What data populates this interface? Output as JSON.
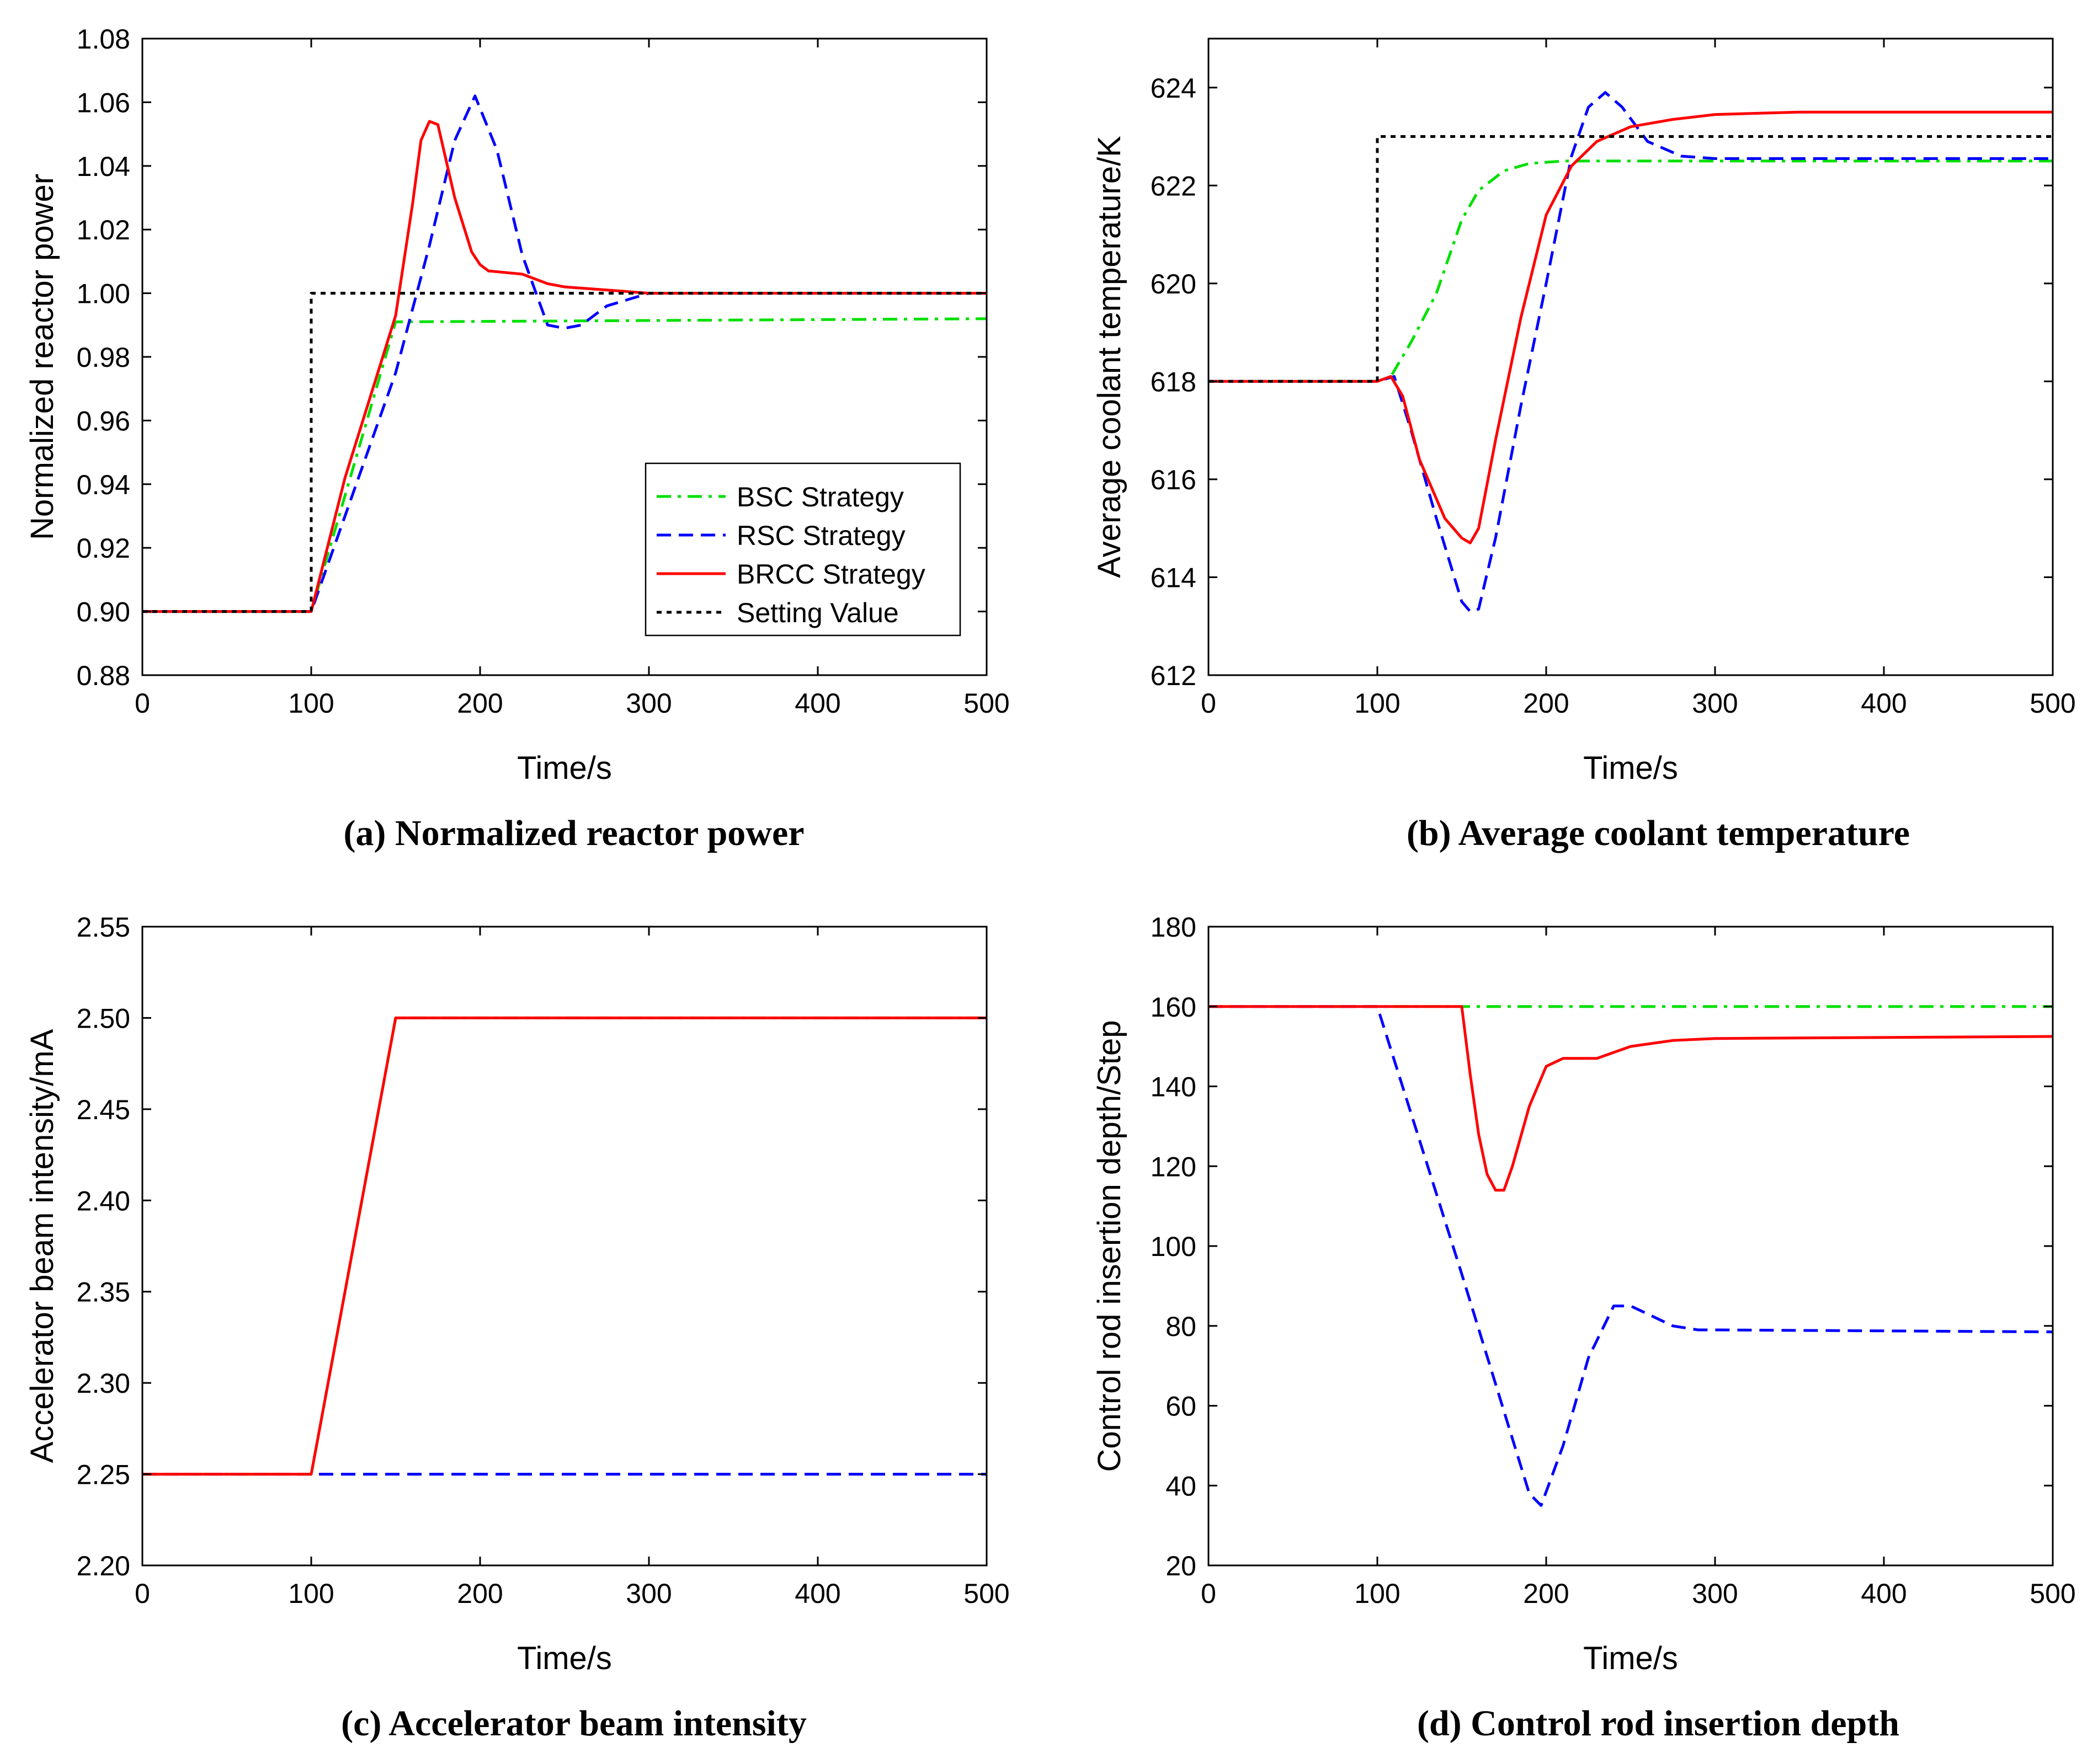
{
  "chart_data": [
    {
      "type": "line",
      "caption": "(a) Normalized reactor power",
      "xlabel": "Time/s",
      "ylabel": "Normalized reactor power",
      "xlim": [
        0,
        500
      ],
      "ylim": [
        0.88,
        1.08
      ],
      "xticks": [
        0,
        100,
        200,
        300,
        400,
        500
      ],
      "xtick_labels": [
        "0",
        "100",
        "200",
        "300",
        "400",
        "500"
      ],
      "yticks": [
        0.88,
        0.9,
        0.92,
        0.94,
        0.96,
        0.98,
        1.0,
        1.02,
        1.04,
        1.06,
        1.08
      ],
      "ytick_labels": [
        "0.88",
        "0.90",
        "0.92",
        "0.94",
        "0.96",
        "0.98",
        "1.00",
        "1.02",
        "1.04",
        "1.06",
        "1.08"
      ],
      "legend": {
        "placement": "bottom-right",
        "entries": [
          "BSC Strategy",
          "RSC Strategy",
          "BRCC Strategy",
          "Setting Value"
        ]
      },
      "series": [
        {
          "name": "BSC Strategy",
          "color": "#00e000",
          "dash": "dashdot",
          "x": [
            0,
            100,
            150,
            500
          ],
          "y": [
            0.9,
            0.9,
            0.991,
            0.992
          ]
        },
        {
          "name": "RSC Strategy",
          "color": "#0000ff",
          "dash": "dash",
          "x": [
            0,
            100,
            120,
            150,
            170,
            185,
            197,
            210,
            225,
            240,
            250,
            260,
            275,
            300,
            500
          ],
          "y": [
            0.9,
            0.9,
            0.93,
            0.975,
            1.015,
            1.048,
            1.062,
            1.045,
            1.012,
            0.99,
            0.989,
            0.99,
            0.996,
            1.0,
            1.0
          ]
        },
        {
          "name": "BRCC Strategy",
          "color": "#ff0000",
          "dash": "solid",
          "x": [
            0,
            100,
            120,
            150,
            160,
            165,
            170,
            175,
            185,
            195,
            200,
            205,
            225,
            240,
            250,
            275,
            300,
            500
          ],
          "y": [
            0.9,
            0.9,
            0.942,
            0.993,
            1.028,
            1.048,
            1.054,
            1.053,
            1.03,
            1.013,
            1.009,
            1.007,
            1.006,
            1.003,
            1.002,
            1.001,
            1.0,
            1.0
          ]
        },
        {
          "name": "Setting Value",
          "color": "#000000",
          "dash": "dot",
          "x": [
            0,
            100,
            100,
            500
          ],
          "y": [
            0.9,
            0.9,
            1.0,
            1.0
          ]
        }
      ]
    },
    {
      "type": "line",
      "caption": "(b) Average coolant temperature",
      "xlabel": "Time/s",
      "ylabel": "Average coolant temperature/K",
      "xlim": [
        0,
        500
      ],
      "ylim": [
        612,
        625
      ],
      "xticks": [
        0,
        100,
        200,
        300,
        400,
        500
      ],
      "xtick_labels": [
        "0",
        "100",
        "200",
        "300",
        "400",
        "500"
      ],
      "yticks": [
        612,
        614,
        616,
        618,
        620,
        622,
        624
      ],
      "ytick_labels": [
        "612",
        "614",
        "616",
        "618",
        "620",
        "622",
        "624"
      ],
      "series": [
        {
          "name": "BSC Strategy",
          "color": "#00e000",
          "dash": "dashdot",
          "x": [
            0,
            100,
            108,
            120,
            135,
            150,
            160,
            175,
            190,
            210,
            500
          ],
          "y": [
            618.0,
            618.0,
            618.1,
            618.8,
            619.8,
            621.3,
            621.9,
            622.3,
            622.45,
            622.5,
            622.5
          ]
        },
        {
          "name": "RSC Strategy",
          "color": "#0000ff",
          "dash": "dash",
          "x": [
            0,
            100,
            110,
            120,
            135,
            150,
            155,
            160,
            170,
            185,
            200,
            215,
            225,
            235,
            245,
            260,
            280,
            300,
            500
          ],
          "y": [
            618.0,
            618.0,
            618.1,
            617.0,
            615.2,
            613.5,
            613.3,
            613.35,
            614.8,
            617.5,
            620.0,
            622.6,
            623.6,
            623.9,
            623.6,
            622.9,
            622.6,
            622.55,
            622.55
          ]
        },
        {
          "name": "BRCC Strategy",
          "color": "#ff0000",
          "dash": "solid",
          "x": [
            0,
            100,
            108,
            115,
            125,
            140,
            150,
            155,
            160,
            170,
            185,
            200,
            215,
            230,
            250,
            275,
            300,
            350,
            500
          ],
          "y": [
            618.0,
            618.0,
            618.1,
            617.7,
            616.4,
            615.2,
            614.8,
            614.7,
            615.0,
            616.8,
            619.3,
            621.4,
            622.4,
            622.9,
            623.2,
            623.35,
            623.45,
            623.5,
            623.5
          ]
        },
        {
          "name": "Setting Value",
          "color": "#000000",
          "dash": "dot",
          "x": [
            0,
            100,
            100,
            500
          ],
          "y": [
            618.0,
            618.0,
            623.0,
            623.0
          ]
        }
      ]
    },
    {
      "type": "line",
      "caption": "(c) Accelerator beam intensity",
      "xlabel": "Time/s",
      "ylabel": "Accelerator beam intensity/mA",
      "xlim": [
        0,
        500
      ],
      "ylim": [
        2.2,
        2.55
      ],
      "xticks": [
        0,
        100,
        200,
        300,
        400,
        500
      ],
      "xtick_labels": [
        "0",
        "100",
        "200",
        "300",
        "400",
        "500"
      ],
      "yticks": [
        2.2,
        2.25,
        2.3,
        2.35,
        2.4,
        2.45,
        2.5,
        2.55
      ],
      "ytick_labels": [
        "2.20",
        "2.25",
        "2.30",
        "2.35",
        "2.40",
        "2.45",
        "2.50",
        "2.55"
      ],
      "series": [
        {
          "name": "BSC Strategy",
          "color": "#00e000",
          "dash": "dashdot",
          "x": [
            0,
            100,
            150,
            500
          ],
          "y": [
            2.25,
            2.25,
            2.5,
            2.5
          ]
        },
        {
          "name": "RSC Strategy",
          "color": "#0000ff",
          "dash": "dash",
          "x": [
            0,
            500
          ],
          "y": [
            2.25,
            2.25
          ]
        },
        {
          "name": "BRCC Strategy",
          "color": "#ff0000",
          "dash": "solid",
          "x": [
            0,
            100,
            150,
            500
          ],
          "y": [
            2.25,
            2.25,
            2.5,
            2.5
          ]
        }
      ]
    },
    {
      "type": "line",
      "caption": "(d) Control rod insertion depth",
      "xlabel": "Time/s",
      "ylabel": "Control rod insertion depth/Step",
      "xlim": [
        0,
        500
      ],
      "ylim": [
        20,
        180
      ],
      "xticks": [
        0,
        100,
        200,
        300,
        400,
        500
      ],
      "xtick_labels": [
        "0",
        "100",
        "200",
        "300",
        "400",
        "500"
      ],
      "yticks": [
        20,
        40,
        60,
        80,
        100,
        120,
        140,
        160,
        180
      ],
      "ytick_labels": [
        "20",
        "40",
        "60",
        "80",
        "100",
        "120",
        "140",
        "160",
        "180"
      ],
      "series": [
        {
          "name": "BSC Strategy",
          "color": "#00e000",
          "dash": "dashdot",
          "x": [
            0,
            500
          ],
          "y": [
            160,
            160
          ]
        },
        {
          "name": "RSC Strategy",
          "color": "#0000ff",
          "dash": "dash",
          "x": [
            0,
            100,
            150,
            190,
            197,
            210,
            225,
            240,
            250,
            260,
            275,
            290,
            300,
            500
          ],
          "y": [
            160,
            160,
            93,
            38,
            35,
            50,
            72,
            85,
            85,
            83,
            80,
            79,
            79,
            78.5
          ]
        },
        {
          "name": "BRCC Strategy",
          "color": "#ff0000",
          "dash": "solid",
          "x": [
            0,
            150,
            155,
            160,
            165,
            170,
            175,
            180,
            190,
            200,
            210,
            230,
            250,
            275,
            300,
            500
          ],
          "y": [
            160,
            160,
            143,
            128,
            118,
            114,
            114,
            120,
            135,
            145,
            147,
            147,
            150,
            151.5,
            152,
            152.5
          ]
        }
      ]
    }
  ]
}
